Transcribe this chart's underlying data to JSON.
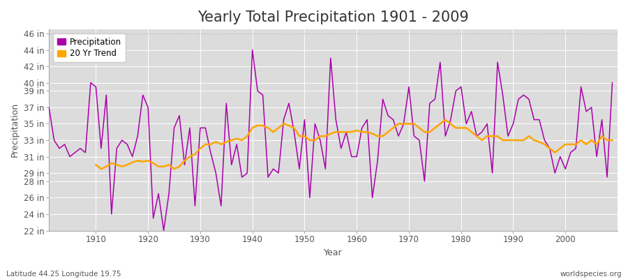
{
  "title": "Yearly Total Precipitation 1901 - 2009",
  "xlabel": "Year",
  "ylabel": "Precipitation",
  "subtitle_left": "Latitude 44.25 Longitude 19.75",
  "subtitle_right": "worldspecies.org",
  "years": [
    1901,
    1902,
    1903,
    1904,
    1905,
    1906,
    1907,
    1908,
    1909,
    1910,
    1911,
    1912,
    1913,
    1914,
    1915,
    1916,
    1917,
    1918,
    1919,
    1920,
    1921,
    1922,
    1923,
    1924,
    1925,
    1926,
    1927,
    1928,
    1929,
    1930,
    1931,
    1932,
    1933,
    1934,
    1935,
    1936,
    1937,
    1938,
    1939,
    1940,
    1941,
    1942,
    1943,
    1944,
    1945,
    1946,
    1947,
    1948,
    1949,
    1950,
    1951,
    1952,
    1953,
    1954,
    1955,
    1956,
    1957,
    1958,
    1959,
    1960,
    1961,
    1962,
    1963,
    1964,
    1965,
    1966,
    1967,
    1968,
    1969,
    1970,
    1971,
    1972,
    1973,
    1974,
    1975,
    1976,
    1977,
    1978,
    1979,
    1980,
    1981,
    1982,
    1983,
    1984,
    1985,
    1986,
    1987,
    1988,
    1989,
    1990,
    1991,
    1992,
    1993,
    1994,
    1995,
    1996,
    1997,
    1998,
    1999,
    2000,
    2001,
    2002,
    2003,
    2004,
    2005,
    2006,
    2007,
    2008,
    2009
  ],
  "precip": [
    37.0,
    33.0,
    32.0,
    32.5,
    31.0,
    31.5,
    32.0,
    31.5,
    40.0,
    39.5,
    32.0,
    38.5,
    24.0,
    32.0,
    33.0,
    32.5,
    31.0,
    33.5,
    38.5,
    37.0,
    23.5,
    26.5,
    22.0,
    26.5,
    34.5,
    36.0,
    30.0,
    34.5,
    25.0,
    34.5,
    34.5,
    31.5,
    29.0,
    25.0,
    37.5,
    30.0,
    32.5,
    28.5,
    29.0,
    44.0,
    39.0,
    38.5,
    28.5,
    29.5,
    29.0,
    35.5,
    37.5,
    34.0,
    29.5,
    35.5,
    26.0,
    35.0,
    33.0,
    29.5,
    43.0,
    35.5,
    32.0,
    34.0,
    31.0,
    31.0,
    34.5,
    35.5,
    26.0,
    30.5,
    38.0,
    36.0,
    35.5,
    33.5,
    35.0,
    39.5,
    33.5,
    33.0,
    28.0,
    37.5,
    38.0,
    42.5,
    33.5,
    35.5,
    39.0,
    39.5,
    35.0,
    36.5,
    33.5,
    34.0,
    35.0,
    29.0,
    42.5,
    38.5,
    33.5,
    35.0,
    38.0,
    38.5,
    38.0,
    35.5,
    35.5,
    33.0,
    32.0,
    29.0,
    31.0,
    29.5,
    31.5,
    32.0,
    39.5,
    36.5,
    37.0,
    31.0,
    35.5,
    28.5,
    40.0
  ],
  "trend": [
    null,
    null,
    null,
    null,
    null,
    null,
    null,
    null,
    null,
    30.0,
    29.5,
    29.8,
    30.2,
    30.0,
    29.8,
    30.0,
    30.3,
    30.5,
    30.4,
    30.5,
    30.2,
    29.8,
    29.8,
    30.0,
    29.5,
    29.8,
    30.5,
    31.0,
    31.3,
    32.0,
    32.5,
    32.5,
    32.8,
    32.5,
    32.8,
    33.0,
    33.2,
    33.0,
    33.5,
    34.5,
    34.8,
    34.8,
    34.5,
    34.0,
    34.5,
    35.0,
    34.8,
    34.5,
    33.5,
    33.5,
    33.0,
    33.0,
    33.5,
    33.5,
    33.8,
    34.0,
    34.0,
    34.0,
    34.0,
    34.2,
    34.0,
    34.0,
    33.8,
    33.5,
    33.5,
    34.0,
    34.5,
    35.0,
    35.0,
    35.0,
    35.0,
    34.5,
    34.0,
    34.0,
    34.5,
    35.0,
    35.5,
    35.0,
    34.5,
    34.5,
    34.5,
    34.0,
    33.5,
    33.0,
    33.5,
    33.5,
    33.5,
    33.0,
    33.0,
    33.0,
    33.0,
    33.0,
    33.5,
    33.0,
    32.8,
    32.5,
    32.0,
    31.5,
    32.0,
    32.5,
    32.5,
    32.5,
    33.0,
    32.5,
    33.0,
    32.5,
    33.5,
    33.0,
    33.0
  ],
  "precip_color": "#AA00AA",
  "trend_color": "#FFA500",
  "fig_bg_color": "#ffffff",
  "plot_bg_color": "#dcdcdc",
  "grid_color": "#ffffff",
  "ylim": [
    22,
    46.5
  ],
  "ytick_labels": [
    "22 in",
    "24 in",
    "26 in",
    "28 in",
    "29 in",
    "31 in",
    "33 in",
    "35 in",
    "37 in",
    "39 in",
    "40 in",
    "42 in",
    "44 in",
    "46 in"
  ],
  "ytick_values": [
    22,
    24,
    26,
    28,
    29,
    31,
    33,
    35,
    37,
    39,
    40,
    42,
    44,
    46
  ],
  "xtick_values": [
    1910,
    1920,
    1930,
    1940,
    1950,
    1960,
    1970,
    1980,
    1990,
    2000
  ],
  "xlim": [
    1901,
    2010
  ],
  "title_fontsize": 15,
  "axis_label_fontsize": 9,
  "tick_fontsize": 8.5
}
